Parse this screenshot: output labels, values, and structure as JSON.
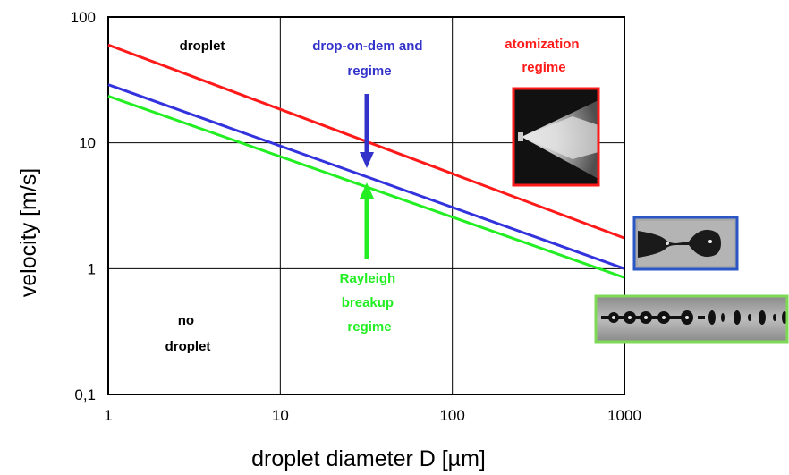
{
  "chart_data": {
    "type": "line",
    "xscale": "log",
    "yscale": "log",
    "xlim": [
      1,
      1000
    ],
    "ylim": [
      0.1,
      100
    ],
    "grid": true,
    "xlabel": "droplet diameter D [µm]",
    "ylabel": "velocity [m/s]",
    "xtick_labels": [
      "1",
      "10",
      "100",
      "1000"
    ],
    "ytick_labels": [
      "0,1",
      "1",
      "10",
      "100"
    ],
    "series": [
      {
        "color": "#ff1a1a",
        "x": [
          1,
          1000
        ],
        "y": [
          60,
          1.75
        ]
      },
      {
        "color": "#3333dd",
        "x": [
          1,
          1000
        ],
        "y": [
          29,
          1.0
        ]
      },
      {
        "color": "#22ee22",
        "x": [
          1,
          1000
        ],
        "y": [
          23.5,
          0.85
        ]
      }
    ],
    "annotations": {
      "droplet": [
        "droplet"
      ],
      "no_droplet": [
        "no",
        "droplet"
      ],
      "drop_on_demand": [
        "drop-on-dem and",
        "regime"
      ],
      "atomization": [
        "atomization",
        "regime"
      ],
      "rayleigh": [
        "Rayleigh",
        "breakup",
        "regime"
      ]
    },
    "colors": {
      "drop_on_demand": "#3333cc",
      "atomization": "#ff1a1a",
      "rayleigh": "#22ee22",
      "arrow_blue": "#3333cc",
      "arrow_green": "#22ee22"
    },
    "insets": {
      "atomization_image": {
        "frame_color": "#ff1a1a",
        "icon": "spray-photo"
      },
      "drop_on_demand_image": {
        "frame_color": "#2a56c6",
        "icon": "single-droplet-photo"
      },
      "rayleigh_image": {
        "frame_color": "#7ed957",
        "icon": "droplet-chain-photo"
      }
    }
  }
}
